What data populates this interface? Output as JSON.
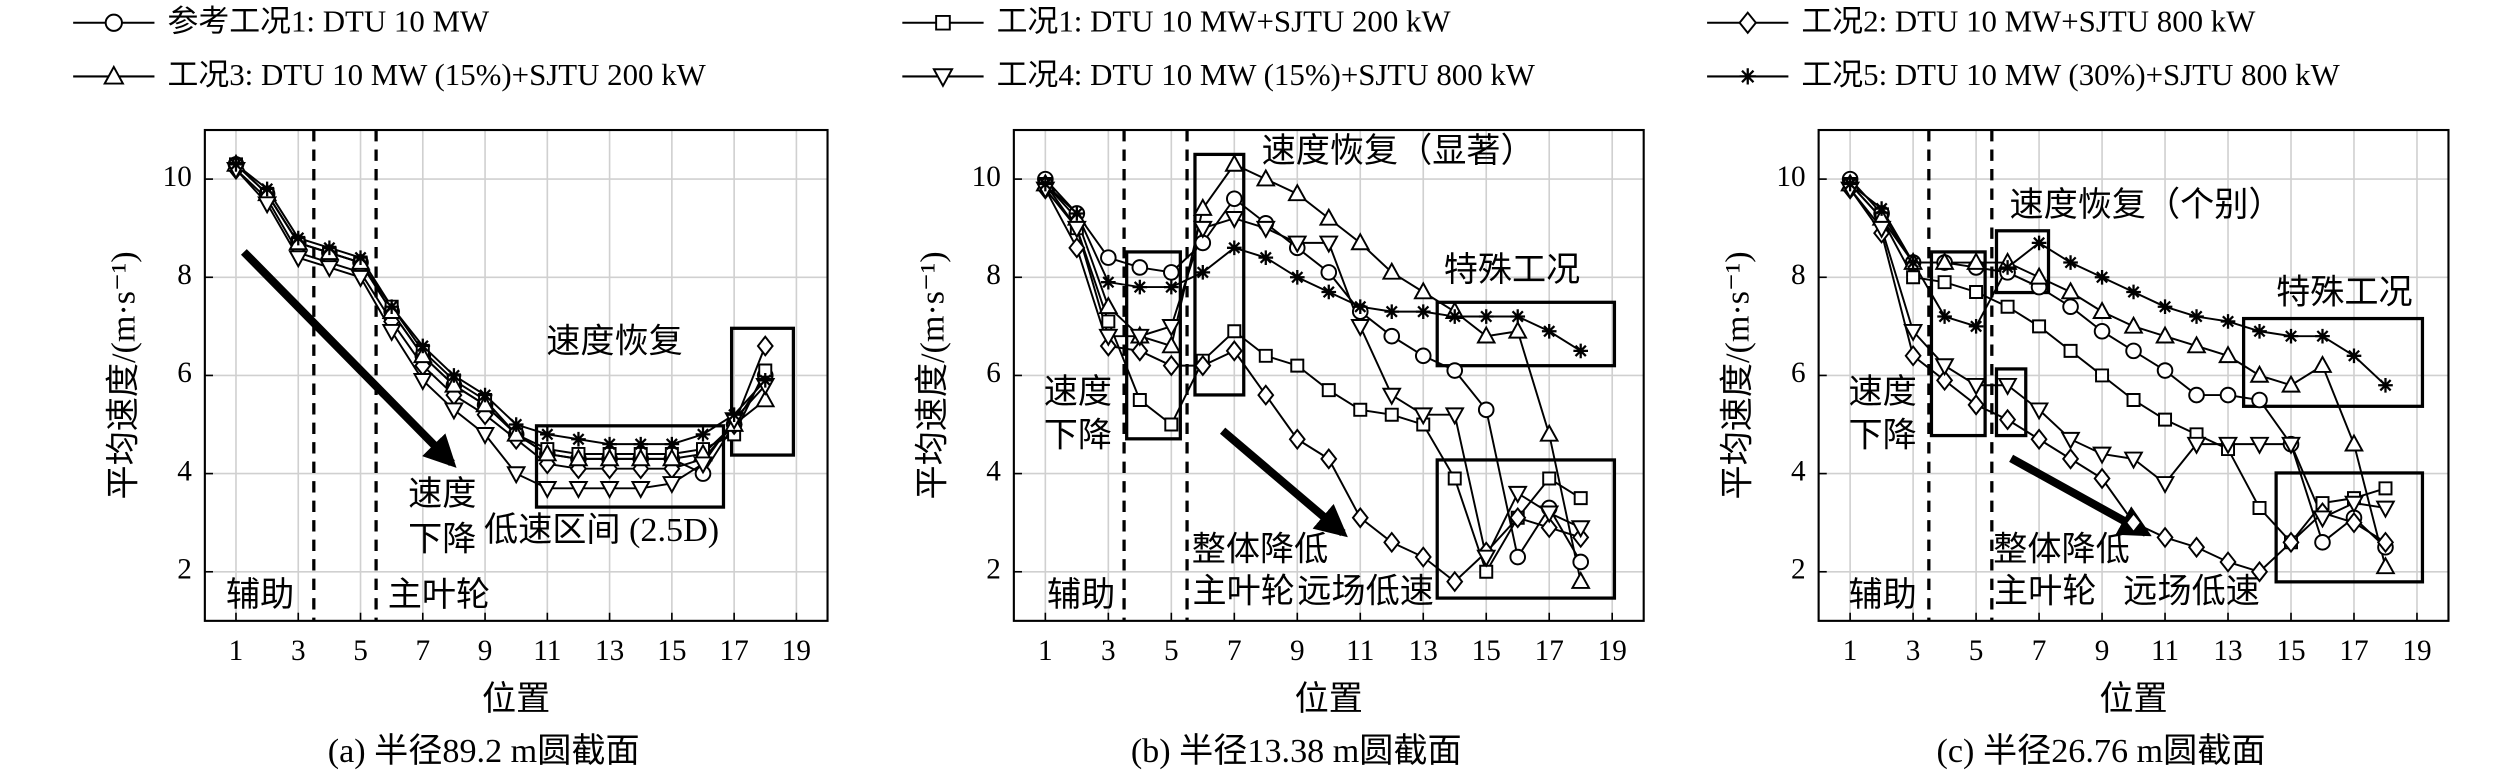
{
  "chart_data": [
    {
      "type": "line",
      "caption": "(a) 半径89.2 m圆截面",
      "xlabel": "位置",
      "ylabel": "平均速度/(m·s⁻¹)",
      "xlim": [
        0,
        20
      ],
      "xticks": [
        1,
        3,
        5,
        7,
        9,
        11,
        13,
        15,
        17,
        19
      ],
      "ylim": [
        1,
        11
      ],
      "yticks": [
        2,
        4,
        6,
        8,
        10
      ],
      "grid": true,
      "annotations": [
        "速度恢复",
        "速度",
        "下降",
        "低速区间 (2.5D)",
        "辅助",
        "主叶轮"
      ],
      "x": [
        1,
        2,
        3,
        4,
        5,
        6,
        7,
        8,
        9,
        10,
        11,
        12,
        13,
        14,
        15,
        16,
        17,
        18
      ],
      "series": [
        {
          "name": "参考工况1: DTU 10 MW",
          "color": "#000000",
          "marker": "circle",
          "values": [
            10.3,
            9.7,
            8.7,
            8.5,
            8.3,
            7.3,
            6.4,
            5.8,
            5.4,
            4.8,
            4.4,
            4.3,
            4.3,
            4.3,
            4.3,
            4.0,
            5.0,
            6.0
          ]
        },
        {
          "name": "工况1: DTU 10 MW+SJTU 200 kW",
          "color": "#000000",
          "marker": "square",
          "values": [
            10.3,
            9.7,
            8.7,
            8.5,
            8.3,
            7.4,
            6.5,
            5.9,
            5.5,
            4.8,
            4.5,
            4.4,
            4.4,
            4.4,
            4.4,
            4.5,
            4.8,
            6.1
          ]
        },
        {
          "name": "工况2: DTU 10 MW+SJTU 800 kW",
          "color": "#000000",
          "marker": "diamond",
          "values": [
            10.2,
            9.6,
            8.5,
            8.3,
            8.1,
            7.1,
            6.2,
            5.6,
            5.2,
            4.7,
            4.2,
            4.1,
            4.1,
            4.1,
            4.1,
            4.3,
            5.0,
            6.6
          ]
        },
        {
          "name": "工况3: DTU 10 MW (15%)+SJTU 200 kW",
          "color": "#000000",
          "marker": "triangle-up",
          "values": [
            10.3,
            9.7,
            8.7,
            8.5,
            8.3,
            7.3,
            6.4,
            5.8,
            5.4,
            4.8,
            4.4,
            4.3,
            4.3,
            4.3,
            4.3,
            4.4,
            5.0,
            5.5
          ]
        },
        {
          "name": "工况4: DTU 10 MW (15%)+SJTU 800 kW",
          "color": "#000000",
          "marker": "triangle-down",
          "values": [
            10.2,
            9.5,
            8.4,
            8.2,
            8.0,
            6.9,
            5.9,
            5.3,
            4.8,
            4.0,
            3.7,
            3.7,
            3.7,
            3.7,
            3.8,
            4.2,
            5.1,
            5.8
          ]
        },
        {
          "name": "工况5: DTU 10 MW (30%)+SJTU 800 kW",
          "color": "#000000",
          "marker": "star",
          "values": [
            10.3,
            9.8,
            8.8,
            8.6,
            8.4,
            7.4,
            6.6,
            6.0,
            5.6,
            5.0,
            4.8,
            4.7,
            4.6,
            4.6,
            4.6,
            4.8,
            5.2,
            5.9
          ]
        }
      ]
    },
    {
      "type": "line",
      "caption": "(b) 半径13.38 m圆截面",
      "xlabel": "位置",
      "ylabel": "平均速度/(m·s⁻¹)",
      "xlim": [
        0,
        20
      ],
      "xticks": [
        1,
        3,
        5,
        7,
        9,
        11,
        13,
        15,
        17,
        19
      ],
      "ylim": [
        1,
        11
      ],
      "yticks": [
        2,
        4,
        6,
        8,
        10
      ],
      "grid": true,
      "annotations": [
        "速度恢复（显著）",
        "特殊工况",
        "速度",
        "下降",
        "整体降低",
        "主叶轮",
        "远场低速",
        "辅助"
      ],
      "x": [
        1,
        2,
        3,
        4,
        5,
        6,
        7,
        8,
        9,
        10,
        11,
        12,
        13,
        14,
        15,
        16,
        17,
        18
      ],
      "series": [
        {
          "color": "#000000",
          "marker": "circle",
          "values": [
            10.0,
            9.3,
            8.4,
            8.2,
            8.1,
            8.7,
            9.6,
            9.1,
            8.6,
            8.1,
            7.3,
            6.8,
            6.4,
            6.1,
            5.3,
            2.3,
            3.3,
            2.2
          ]
        },
        {
          "color": "#000000",
          "marker": "square",
          "values": [
            9.9,
            9.0,
            7.1,
            5.5,
            5.0,
            6.3,
            6.9,
            6.4,
            6.2,
            5.7,
            5.3,
            5.2,
            5.0,
            3.9,
            2.0,
            3.1,
            3.9,
            3.5
          ]
        },
        {
          "color": "#000000",
          "marker": "diamond",
          "values": [
            9.8,
            8.6,
            6.6,
            6.5,
            6.2,
            6.2,
            6.5,
            5.6,
            4.7,
            4.3,
            3.1,
            2.6,
            2.3,
            1.8,
            2.4,
            3.1,
            2.9,
            2.7
          ]
        },
        {
          "color": "#000000",
          "marker": "triangle-up",
          "values": [
            9.9,
            9.2,
            7.4,
            6.8,
            6.6,
            9.4,
            10.3,
            10.0,
            9.7,
            9.2,
            8.7,
            8.1,
            7.7,
            7.3,
            6.8,
            6.9,
            4.8,
            1.8
          ]
        },
        {
          "color": "#000000",
          "marker": "triangle-down",
          "values": [
            9.8,
            9.0,
            6.8,
            6.8,
            7.0,
            9.0,
            9.2,
            9.0,
            8.7,
            8.7,
            7.0,
            5.6,
            5.2,
            5.2,
            2.3,
            3.6,
            3.2,
            2.9
          ]
        },
        {
          "color": "#000000",
          "marker": "star",
          "values": [
            9.9,
            9.3,
            7.9,
            7.8,
            7.8,
            8.1,
            8.6,
            8.4,
            8.0,
            7.7,
            7.4,
            7.3,
            7.3,
            7.2,
            7.2,
            7.2,
            6.9,
            6.5
          ]
        }
      ]
    },
    {
      "type": "line",
      "caption": "(c) 半径26.76 m圆截面",
      "xlabel": "位置",
      "ylabel": "平均速度/(m·s⁻¹)",
      "xlim": [
        0,
        20
      ],
      "xticks": [
        1,
        3,
        5,
        7,
        9,
        11,
        13,
        15,
        17,
        19
      ],
      "ylim": [
        1,
        11
      ],
      "yticks": [
        2,
        4,
        6,
        8,
        10
      ],
      "grid": true,
      "annotations": [
        "速度恢复（个别）",
        "特殊工况",
        "速度",
        "下降",
        "整体降低",
        "主叶轮",
        "远场低速",
        "辅助"
      ],
      "x": [
        1,
        2,
        3,
        4,
        5,
        6,
        7,
        8,
        9,
        10,
        11,
        12,
        13,
        14,
        15,
        16,
        17,
        18
      ],
      "series": [
        {
          "color": "#000000",
          "marker": "circle",
          "values": [
            10.0,
            9.3,
            8.3,
            8.3,
            8.2,
            8.1,
            7.8,
            7.4,
            6.9,
            6.5,
            6.1,
            5.6,
            5.6,
            5.5,
            4.6,
            2.6,
            3.1,
            2.5
          ]
        },
        {
          "color": "#000000",
          "marker": "square",
          "values": [
            9.9,
            9.2,
            8.0,
            7.9,
            7.7,
            7.4,
            7.0,
            6.5,
            6.0,
            5.5,
            5.1,
            4.8,
            4.5,
            3.3,
            2.6,
            3.4,
            3.5,
            3.7
          ]
        },
        {
          "color": "#000000",
          "marker": "diamond",
          "values": [
            9.8,
            8.9,
            6.4,
            5.9,
            5.4,
            5.1,
            4.7,
            4.3,
            3.9,
            3.0,
            2.7,
            2.5,
            2.2,
            2.0,
            2.6,
            3.2,
            3.0,
            2.6
          ]
        },
        {
          "color": "#000000",
          "marker": "triangle-up",
          "values": [
            9.9,
            9.2,
            8.3,
            8.3,
            8.3,
            8.3,
            8.0,
            7.7,
            7.3,
            7.0,
            6.8,
            6.6,
            6.4,
            6.0,
            5.8,
            6.2,
            4.6,
            2.1
          ]
        },
        {
          "color": "#000000",
          "marker": "triangle-down",
          "values": [
            9.8,
            9.0,
            6.9,
            6.2,
            5.8,
            5.8,
            5.3,
            4.7,
            4.4,
            4.3,
            3.8,
            4.6,
            4.6,
            4.6,
            4.6,
            3.1,
            3.4,
            3.3
          ]
        },
        {
          "color": "#000000",
          "marker": "star",
          "values": [
            9.9,
            9.4,
            8.3,
            7.2,
            7.0,
            8.2,
            8.7,
            8.3,
            8.0,
            7.7,
            7.4,
            7.2,
            7.1,
            6.9,
            6.8,
            6.8,
            6.4,
            5.8
          ]
        }
      ]
    }
  ]
}
